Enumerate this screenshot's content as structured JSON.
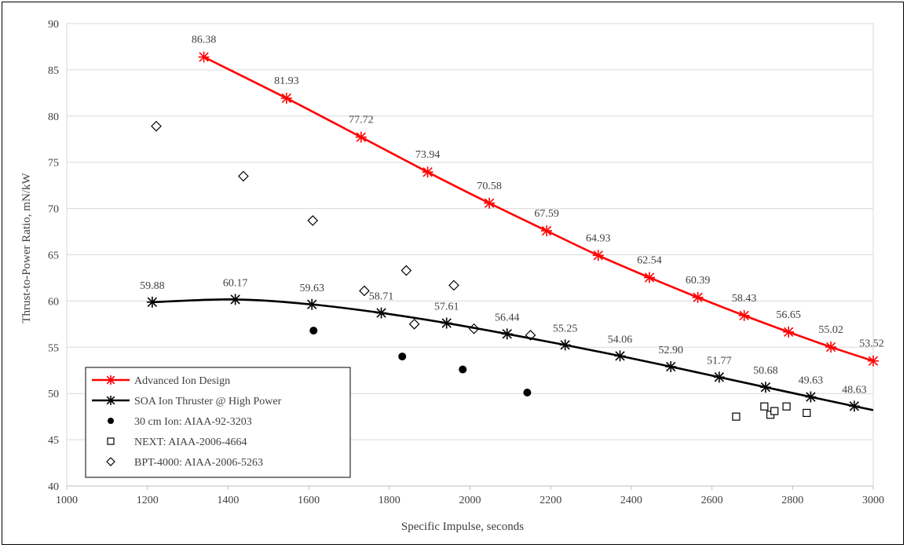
{
  "chart_data": {
    "type": "scatter",
    "title": "",
    "xlabel": "Specific Impulse, seconds",
    "ylabel": "Thrust-to-Power Ratio, mN/kW",
    "xlim": [
      1000,
      3000
    ],
    "ylim": [
      40,
      90
    ],
    "xticks": [
      1000,
      1200,
      1400,
      1600,
      1800,
      2000,
      2200,
      2400,
      2600,
      2800,
      3000
    ],
    "yticks": [
      40,
      45,
      50,
      55,
      60,
      65,
      70,
      75,
      80,
      85,
      90
    ],
    "grid": "horizontal",
    "legend_position": "bottom-left",
    "series": [
      {
        "name": "Advanced Ion Design",
        "style": "line-asterisk",
        "color": "#ff0000",
        "x": [
          1340,
          1545,
          1730,
          1895,
          2048,
          2190,
          2318,
          2445,
          2565,
          2680,
          2790,
          2895,
          3000
        ],
        "y": [
          86.38,
          81.93,
          77.72,
          73.94,
          70.58,
          67.59,
          64.93,
          62.54,
          60.39,
          58.43,
          56.65,
          55.02,
          53.52
        ],
        "labels": [
          "86.38",
          "81.93",
          "77.72",
          "73.94",
          "70.58",
          "67.59",
          "64.93",
          "62.54",
          "60.39",
          "58.43",
          "56.65",
          "55.02",
          "53.52"
        ]
      },
      {
        "name": "SOA Ion Thruster @ High Power",
        "style": "line-asterisk",
        "color": "#000000",
        "x": [
          1212,
          1418,
          1608,
          1780,
          1942,
          2092,
          2236,
          2372,
          2498,
          2618,
          2733,
          2845,
          2953
        ],
        "y": [
          59.88,
          60.17,
          59.63,
          58.71,
          57.61,
          56.44,
          55.25,
          54.06,
          52.9,
          51.77,
          50.68,
          49.63,
          48.63
        ],
        "labels": [
          "59.88",
          "60.17",
          "59.63",
          "58.71",
          "57.61",
          "56.44",
          "55.25",
          "54.06",
          "52.90",
          "51.77",
          "50.68",
          "49.63",
          "48.63"
        ],
        "curve_end": {
          "x": 3000,
          "y": 48.2
        }
      },
      {
        "name": "30 cm Ion: AIAA-92-3203",
        "style": "filled-circle",
        "color": "#000000",
        "x": [
          1612,
          1832,
          1982,
          2142
        ],
        "y": [
          56.8,
          54.0,
          52.6,
          50.1
        ]
      },
      {
        "name": "NEXT: AIAA-2006-4664",
        "style": "open-square",
        "color": "#000000",
        "x": [
          2660,
          2730,
          2745,
          2755,
          2785,
          2835
        ],
        "y": [
          47.5,
          48.6,
          47.7,
          48.1,
          48.6,
          47.9
        ]
      },
      {
        "name": "BPT-4000: AIAA-2006-5263",
        "style": "open-diamond",
        "color": "#000000",
        "x": [
          1222,
          1438,
          1610,
          1738,
          1842,
          1862,
          1960,
          2010,
          2150
        ],
        "y": [
          78.9,
          73.5,
          68.7,
          61.1,
          63.3,
          57.5,
          61.7,
          57.0,
          56.3
        ]
      }
    ]
  }
}
